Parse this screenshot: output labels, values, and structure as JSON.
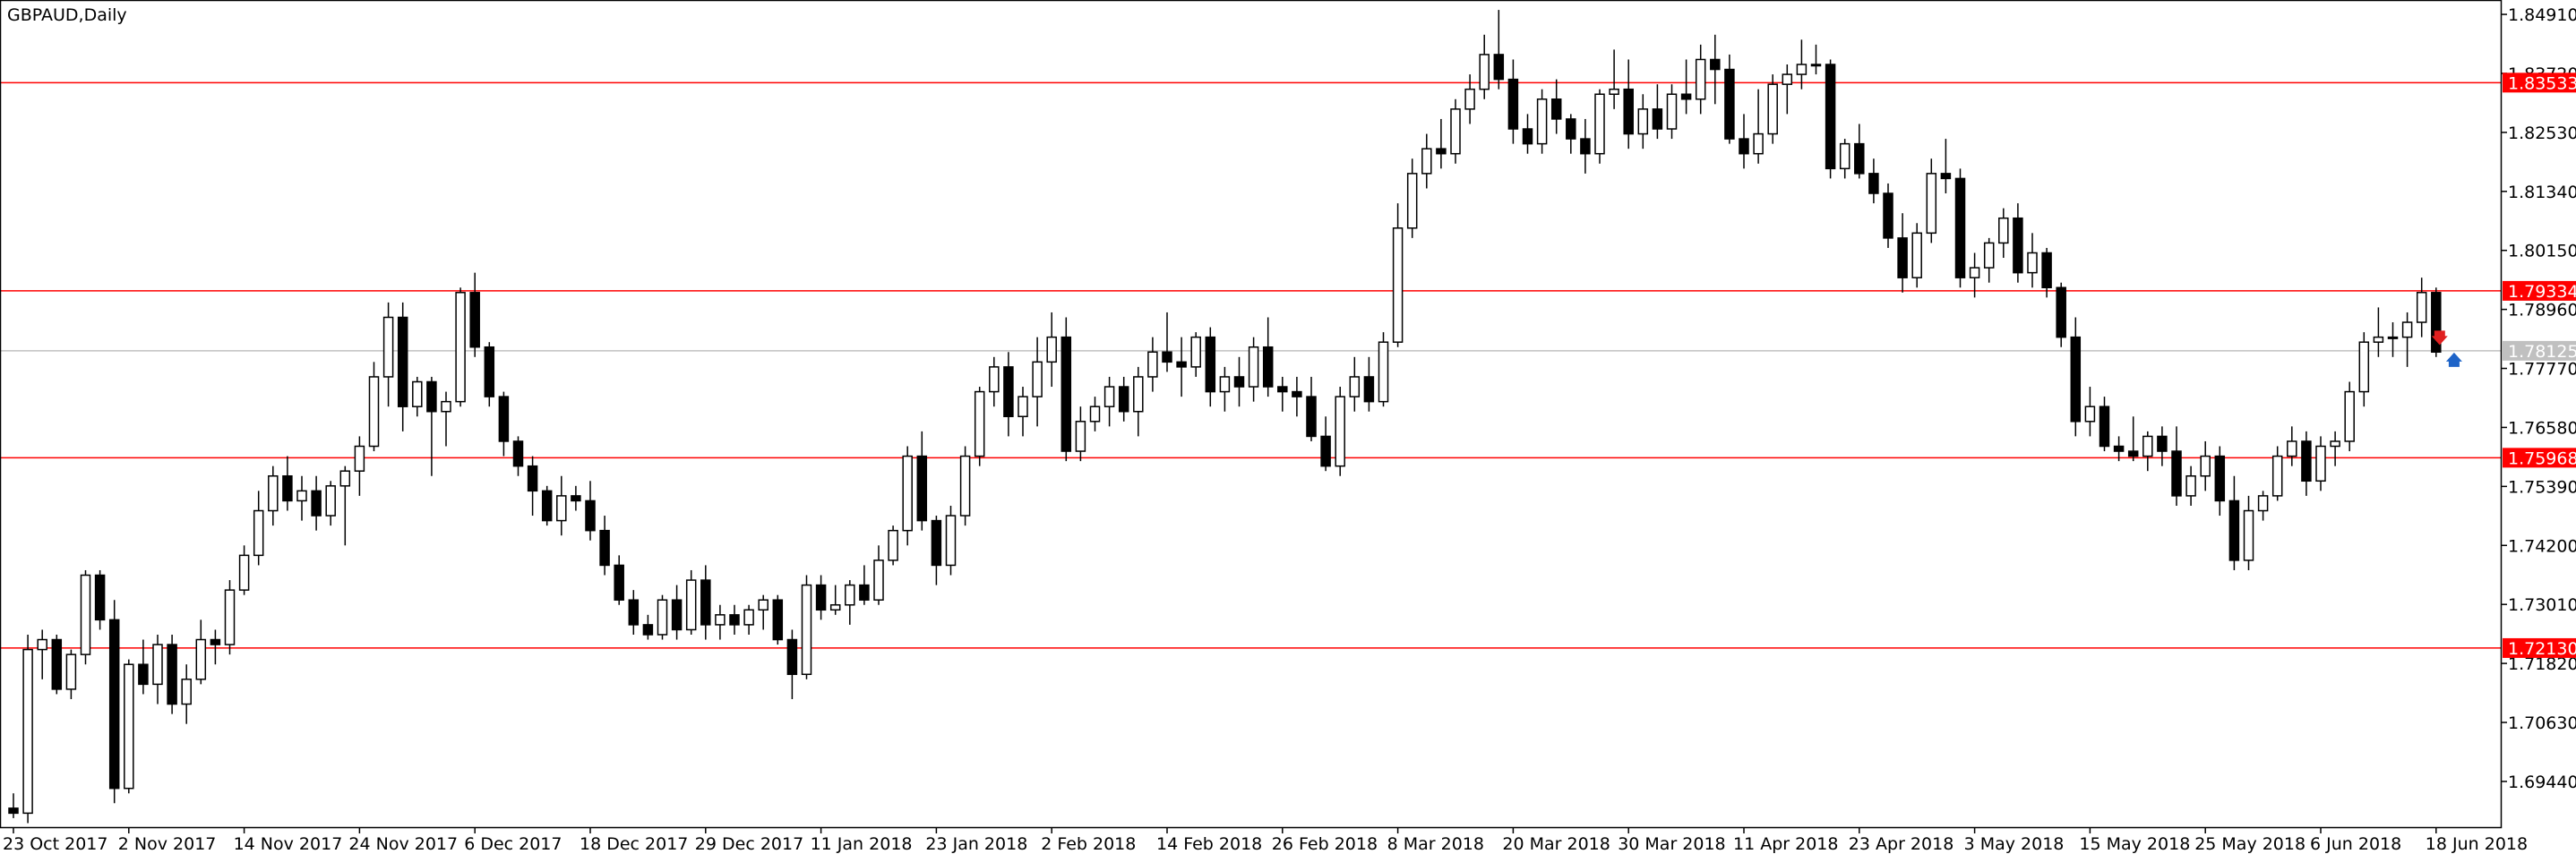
{
  "chart_data": {
    "type": "candlestick",
    "title": "GBPAUD,Daily",
    "ylim": [
      1.685,
      1.852
    ],
    "y_ticks": [
      "1.84910",
      "1.83720",
      "1.82530",
      "1.81340",
      "1.80150",
      "1.78960",
      "1.77770",
      "1.76580",
      "1.75390",
      "1.74200",
      "1.73010",
      "1.71820",
      "1.70630",
      "1.69440"
    ],
    "x_ticks": [
      {
        "label": "23 Oct 2017",
        "index": 0
      },
      {
        "label": "2 Nov 2017",
        "index": 8
      },
      {
        "label": "14 Nov 2017",
        "index": 16
      },
      {
        "label": "24 Nov 2017",
        "index": 24
      },
      {
        "label": "6 Dec 2017",
        "index": 32
      },
      {
        "label": "18 Dec 2017",
        "index": 40
      },
      {
        "label": "29 Dec 2017",
        "index": 48
      },
      {
        "label": "11 Jan 2018",
        "index": 56
      },
      {
        "label": "23 Jan 2018",
        "index": 64
      },
      {
        "label": "2 Feb 2018",
        "index": 72
      },
      {
        "label": "14 Feb 2018",
        "index": 80
      },
      {
        "label": "26 Feb 2018",
        "index": 88
      },
      {
        "label": "8 Mar 2018",
        "index": 96
      },
      {
        "label": "20 Mar 2018",
        "index": 104
      },
      {
        "label": "30 Mar 2018",
        "index": 112
      },
      {
        "label": "11 Apr 2018",
        "index": 120
      },
      {
        "label": "23 Apr 2018",
        "index": 128
      },
      {
        "label": "3 May 2018",
        "index": 136
      },
      {
        "label": "15 May 2018",
        "index": 144
      },
      {
        "label": "25 May 2018",
        "index": 152
      },
      {
        "label": "6 Jun 2018",
        "index": 160
      },
      {
        "label": "18 Jun 2018",
        "index": 168
      }
    ],
    "levels": [
      {
        "price": 1.83533,
        "label": "1.83533"
      },
      {
        "price": 1.79334,
        "label": "1.79334"
      },
      {
        "price": 1.75968,
        "label": "1.75968"
      },
      {
        "price": 1.7213,
        "label": "1.72130"
      }
    ],
    "current_price": {
      "price": 1.78125,
      "label": "1.78125"
    },
    "candles": [
      [
        1.689,
        1.692,
        1.687,
        1.688
      ],
      [
        1.688,
        1.724,
        1.686,
        1.721
      ],
      [
        1.721,
        1.725,
        1.715,
        1.723
      ],
      [
        1.723,
        1.724,
        1.712,
        1.713
      ],
      [
        1.713,
        1.721,
        1.711,
        1.72
      ],
      [
        1.72,
        1.737,
        1.718,
        1.736
      ],
      [
        1.736,
        1.737,
        1.725,
        1.727
      ],
      [
        1.727,
        1.731,
        1.69,
        1.693
      ],
      [
        1.693,
        1.719,
        1.692,
        1.718
      ],
      [
        1.718,
        1.723,
        1.712,
        1.714
      ],
      [
        1.714,
        1.724,
        1.71,
        1.722
      ],
      [
        1.722,
        1.724,
        1.708,
        1.71
      ],
      [
        1.71,
        1.718,
        1.706,
        1.715
      ],
      [
        1.715,
        1.727,
        1.714,
        1.723
      ],
      [
        1.723,
        1.725,
        1.718,
        1.722
      ],
      [
        1.722,
        1.735,
        1.72,
        1.733
      ],
      [
        1.733,
        1.742,
        1.732,
        1.74
      ],
      [
        1.74,
        1.753,
        1.738,
        1.749
      ],
      [
        1.749,
        1.758,
        1.746,
        1.756
      ],
      [
        1.756,
        1.76,
        1.749,
        1.751
      ],
      [
        1.751,
        1.756,
        1.747,
        1.753
      ],
      [
        1.753,
        1.756,
        1.745,
        1.748
      ],
      [
        1.748,
        1.755,
        1.746,
        1.754
      ],
      [
        1.754,
        1.758,
        1.742,
        1.757
      ],
      [
        1.757,
        1.764,
        1.752,
        1.762
      ],
      [
        1.762,
        1.779,
        1.761,
        1.776
      ],
      [
        1.776,
        1.791,
        1.77,
        1.788
      ],
      [
        1.788,
        1.791,
        1.765,
        1.77
      ],
      [
        1.77,
        1.776,
        1.768,
        1.775
      ],
      [
        1.775,
        1.776,
        1.756,
        1.769
      ],
      [
        1.769,
        1.773,
        1.762,
        1.771
      ],
      [
        1.771,
        1.794,
        1.77,
        1.793
      ],
      [
        1.793,
        1.797,
        1.78,
        1.782
      ],
      [
        1.782,
        1.783,
        1.77,
        1.772
      ],
      [
        1.772,
        1.773,
        1.76,
        1.763
      ],
      [
        1.763,
        1.764,
        1.756,
        1.758
      ],
      [
        1.758,
        1.76,
        1.748,
        1.753
      ],
      [
        1.753,
        1.754,
        1.746,
        1.747
      ],
      [
        1.747,
        1.756,
        1.744,
        1.752
      ],
      [
        1.752,
        1.754,
        1.749,
        1.751
      ],
      [
        1.751,
        1.755,
        1.743,
        1.745
      ],
      [
        1.745,
        1.748,
        1.736,
        1.738
      ],
      [
        1.738,
        1.74,
        1.73,
        1.731
      ],
      [
        1.731,
        1.733,
        1.724,
        1.726
      ],
      [
        1.726,
        1.728,
        1.723,
        1.724
      ],
      [
        1.724,
        1.732,
        1.723,
        1.731
      ],
      [
        1.731,
        1.734,
        1.723,
        1.725
      ],
      [
        1.725,
        1.737,
        1.724,
        1.735
      ],
      [
        1.735,
        1.738,
        1.723,
        1.726
      ],
      [
        1.726,
        1.73,
        1.723,
        1.728
      ],
      [
        1.728,
        1.73,
        1.724,
        1.726
      ],
      [
        1.726,
        1.73,
        1.724,
        1.729
      ],
      [
        1.729,
        1.732,
        1.725,
        1.731
      ],
      [
        1.731,
        1.732,
        1.722,
        1.723
      ],
      [
        1.723,
        1.725,
        1.711,
        1.716
      ],
      [
        1.716,
        1.736,
        1.715,
        1.734
      ],
      [
        1.734,
        1.736,
        1.727,
        1.729
      ],
      [
        1.729,
        1.734,
        1.728,
        1.73
      ],
      [
        1.73,
        1.735,
        1.726,
        1.734
      ],
      [
        1.734,
        1.738,
        1.73,
        1.731
      ],
      [
        1.731,
        1.742,
        1.73,
        1.739
      ],
      [
        1.739,
        1.746,
        1.738,
        1.745
      ],
      [
        1.745,
        1.762,
        1.742,
        1.76
      ],
      [
        1.76,
        1.765,
        1.745,
        1.747
      ],
      [
        1.747,
        1.748,
        1.734,
        1.738
      ],
      [
        1.738,
        1.75,
        1.736,
        1.748
      ],
      [
        1.748,
        1.762,
        1.746,
        1.76
      ],
      [
        1.76,
        1.774,
        1.758,
        1.773
      ],
      [
        1.773,
        1.78,
        1.77,
        1.778
      ],
      [
        1.778,
        1.781,
        1.764,
        1.768
      ],
      [
        1.768,
        1.774,
        1.764,
        1.772
      ],
      [
        1.772,
        1.784,
        1.766,
        1.779
      ],
      [
        1.779,
        1.789,
        1.774,
        1.784
      ],
      [
        1.784,
        1.788,
        1.759,
        1.761
      ],
      [
        1.761,
        1.77,
        1.759,
        1.767
      ],
      [
        1.767,
        1.772,
        1.765,
        1.77
      ],
      [
        1.77,
        1.776,
        1.766,
        1.774
      ],
      [
        1.774,
        1.776,
        1.767,
        1.769
      ],
      [
        1.769,
        1.778,
        1.764,
        1.776
      ],
      [
        1.776,
        1.784,
        1.773,
        1.781
      ],
      [
        1.781,
        1.789,
        1.777,
        1.779
      ],
      [
        1.779,
        1.784,
        1.772,
        1.778
      ],
      [
        1.778,
        1.785,
        1.776,
        1.784
      ],
      [
        1.784,
        1.786,
        1.77,
        1.773
      ],
      [
        1.773,
        1.778,
        1.769,
        1.776
      ],
      [
        1.776,
        1.78,
        1.77,
        1.774
      ],
      [
        1.774,
        1.784,
        1.771,
        1.782
      ],
      [
        1.782,
        1.788,
        1.772,
        1.774
      ],
      [
        1.774,
        1.776,
        1.769,
        1.773
      ],
      [
        1.773,
        1.776,
        1.768,
        1.772
      ],
      [
        1.772,
        1.776,
        1.763,
        1.764
      ],
      [
        1.764,
        1.768,
        1.757,
        1.758
      ],
      [
        1.758,
        1.774,
        1.756,
        1.772
      ],
      [
        1.772,
        1.78,
        1.769,
        1.776
      ],
      [
        1.776,
        1.78,
        1.769,
        1.771
      ],
      [
        1.771,
        1.785,
        1.77,
        1.783
      ],
      [
        1.783,
        1.811,
        1.782,
        1.806
      ],
      [
        1.806,
        1.82,
        1.804,
        1.817
      ],
      [
        1.817,
        1.825,
        1.814,
        1.822
      ],
      [
        1.822,
        1.828,
        1.818,
        1.821
      ],
      [
        1.821,
        1.832,
        1.819,
        1.83
      ],
      [
        1.83,
        1.837,
        1.827,
        1.834
      ],
      [
        1.834,
        1.845,
        1.832,
        1.841
      ],
      [
        1.841,
        1.85,
        1.834,
        1.836
      ],
      [
        1.836,
        1.84,
        1.823,
        1.826
      ],
      [
        1.826,
        1.829,
        1.821,
        1.823
      ],
      [
        1.823,
        1.834,
        1.821,
        1.832
      ],
      [
        1.832,
        1.836,
        1.825,
        1.828
      ],
      [
        1.828,
        1.829,
        1.821,
        1.824
      ],
      [
        1.824,
        1.828,
        1.817,
        1.821
      ],
      [
        1.821,
        1.834,
        1.819,
        1.833
      ],
      [
        1.833,
        1.842,
        1.83,
        1.834
      ],
      [
        1.834,
        1.84,
        1.822,
        1.825
      ],
      [
        1.825,
        1.833,
        1.822,
        1.83
      ],
      [
        1.83,
        1.835,
        1.824,
        1.826
      ],
      [
        1.826,
        1.835,
        1.824,
        1.833
      ],
      [
        1.833,
        1.84,
        1.829,
        1.832
      ],
      [
        1.832,
        1.843,
        1.829,
        1.84
      ],
      [
        1.84,
        1.845,
        1.831,
        1.838
      ],
      [
        1.838,
        1.841,
        1.823,
        1.824
      ],
      [
        1.824,
        1.829,
        1.818,
        1.821
      ],
      [
        1.821,
        1.834,
        1.819,
        1.825
      ],
      [
        1.825,
        1.837,
        1.823,
        1.835
      ],
      [
        1.835,
        1.839,
        1.829,
        1.837
      ],
      [
        1.837,
        1.844,
        1.834,
        1.839
      ],
      [
        1.839,
        1.843,
        1.837,
        1.839
      ],
      [
        1.839,
        1.84,
        1.816,
        1.818
      ],
      [
        1.818,
        1.824,
        1.816,
        1.823
      ],
      [
        1.823,
        1.827,
        1.816,
        1.817
      ],
      [
        1.817,
        1.82,
        1.811,
        1.813
      ],
      [
        1.813,
        1.815,
        1.802,
        1.804
      ],
      [
        1.804,
        1.809,
        1.793,
        1.796
      ],
      [
        1.796,
        1.807,
        1.794,
        1.805
      ],
      [
        1.805,
        1.82,
        1.803,
        1.817
      ],
      [
        1.817,
        1.824,
        1.813,
        1.816
      ],
      [
        1.816,
        1.818,
        1.794,
        1.796
      ],
      [
        1.796,
        1.801,
        1.792,
        1.798
      ],
      [
        1.798,
        1.804,
        1.795,
        1.803
      ],
      [
        1.803,
        1.81,
        1.8,
        1.808
      ],
      [
        1.808,
        1.811,
        1.795,
        1.797
      ],
      [
        1.797,
        1.805,
        1.794,
        1.801
      ],
      [
        1.801,
        1.802,
        1.792,
        1.794
      ],
      [
        1.794,
        1.795,
        1.782,
        1.784
      ],
      [
        1.784,
        1.788,
        1.764,
        1.767
      ],
      [
        1.767,
        1.774,
        1.764,
        1.77
      ],
      [
        1.77,
        1.772,
        1.761,
        1.762
      ],
      [
        1.762,
        1.764,
        1.759,
        1.761
      ],
      [
        1.761,
        1.768,
        1.759,
        1.76
      ],
      [
        1.76,
        1.765,
        1.757,
        1.764
      ],
      [
        1.764,
        1.766,
        1.758,
        1.761
      ],
      [
        1.761,
        1.766,
        1.75,
        1.752
      ],
      [
        1.752,
        1.758,
        1.75,
        1.756
      ],
      [
        1.756,
        1.763,
        1.753,
        1.76
      ],
      [
        1.76,
        1.762,
        1.748,
        1.751
      ],
      [
        1.751,
        1.756,
        1.737,
        1.739
      ],
      [
        1.739,
        1.752,
        1.737,
        1.749
      ],
      [
        1.749,
        1.753,
        1.747,
        1.752
      ],
      [
        1.752,
        1.762,
        1.751,
        1.76
      ],
      [
        1.76,
        1.766,
        1.758,
        1.763
      ],
      [
        1.763,
        1.765,
        1.752,
        1.755
      ],
      [
        1.755,
        1.764,
        1.753,
        1.762
      ],
      [
        1.762,
        1.765,
        1.758,
        1.763
      ],
      [
        1.763,
        1.775,
        1.761,
        1.773
      ],
      [
        1.773,
        1.785,
        1.77,
        1.783
      ],
      [
        1.783,
        1.79,
        1.78,
        1.784
      ],
      [
        1.784,
        1.787,
        1.78,
        1.784
      ],
      [
        1.784,
        1.789,
        1.778,
        1.787
      ],
      [
        1.787,
        1.796,
        1.784,
        1.793
      ],
      [
        1.793,
        1.794,
        1.78,
        1.781
      ]
    ],
    "markers": [
      {
        "index": 168,
        "type": "sell",
        "price": 1.7835,
        "color": "#e02020"
      },
      {
        "index": 169,
        "type": "buy",
        "price": 1.7798,
        "color": "#1e64c8"
      }
    ],
    "colors": {
      "background": "#ffffff",
      "foreground": "#000000",
      "bull_body": "#ffffff",
      "bear_body": "#000000",
      "level_line": "#ff0000",
      "current_line": "#c0c0c0",
      "current_label": "#c0c0c0"
    },
    "grid": false
  }
}
